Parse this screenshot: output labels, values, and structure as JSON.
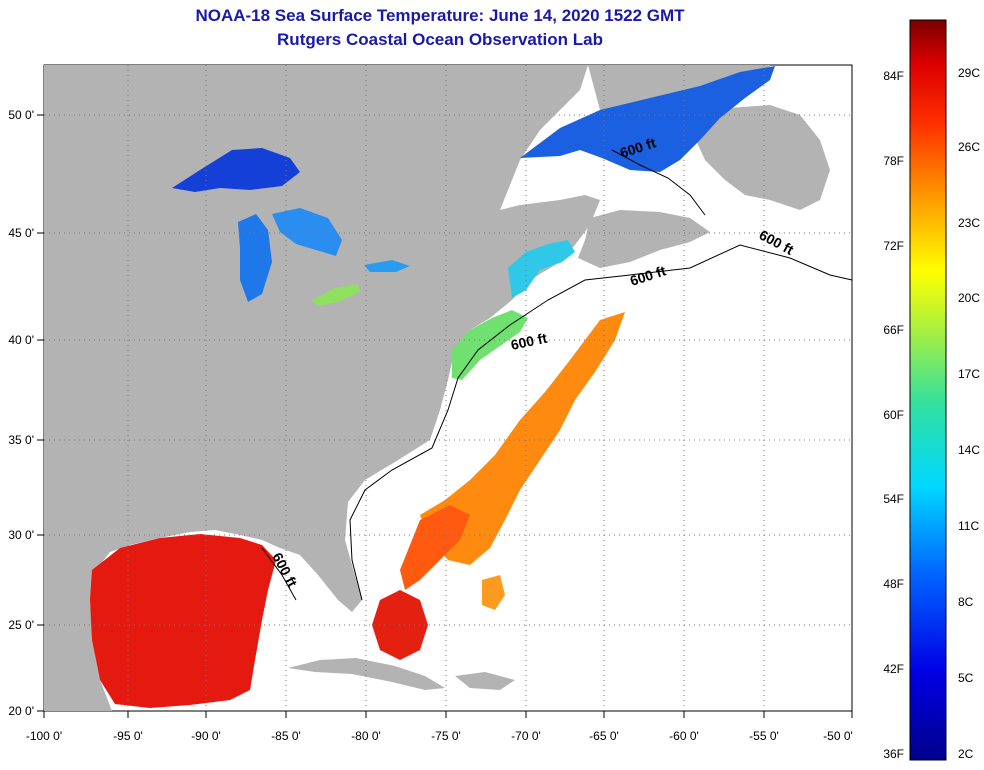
{
  "title": "NOAA-18 Sea Surface Temperature:  June 14, 2020 1522 GMT",
  "subtitle": "Rutgers Coastal Ocean Observation Lab",
  "lon_labels": [
    "-100 0'",
    "-95 0'",
    "-90 0'",
    "-85 0'",
    "-80 0'",
    "-75 0'",
    "-70 0'",
    "-65 0'",
    "-60 0'",
    "-55 0'",
    "-50 0'"
  ],
  "lat_labels": [
    "50 0'",
    "45 0'",
    "40 0'",
    "35 0'",
    "30 0'",
    "25 0'",
    "20 0'"
  ],
  "isobath_label": "600 ft",
  "colorbar": {
    "fahrenheit": [
      "84F",
      "78F",
      "72F",
      "66F",
      "60F",
      "54F",
      "48F",
      "42F",
      "36F"
    ],
    "celsius": [
      "29C",
      "26C",
      "23C",
      "20C",
      "17C",
      "14C",
      "11C",
      "8C",
      "5C",
      "2C"
    ]
  },
  "colors": {
    "land": "#b3b3b3",
    "ocean": "#ffffff",
    "title": "#1a1aa8"
  }
}
